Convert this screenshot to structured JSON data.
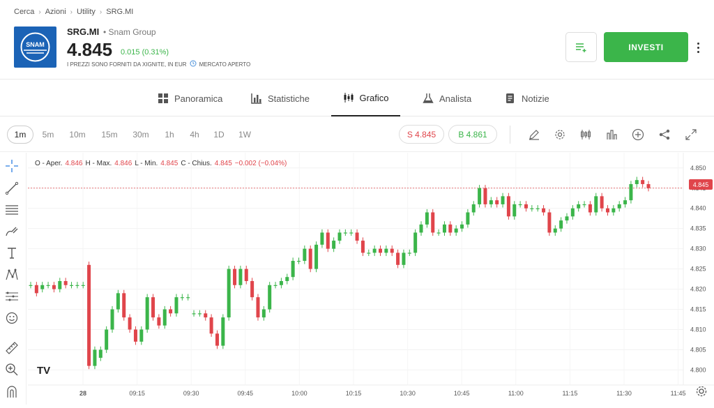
{
  "breadcrumb": [
    "Cerca",
    "Azioni",
    "Utility",
    "SRG.MI"
  ],
  "instrument": {
    "logo_text": "SNAM",
    "ticker": "SRG.MI",
    "company": "• Snam Group",
    "price": "4.845",
    "change": "0.015 (0.31%)",
    "disclaimer": "I PREZZI SONO FORNITI DA XIGNITE, IN EUR",
    "market_status": "MERCATO APERTO"
  },
  "actions": {
    "invest_label": "INVESTI"
  },
  "tabs": [
    {
      "label": "Panoramica",
      "icon": "grid-icon"
    },
    {
      "label": "Statistiche",
      "icon": "bar-chart-icon"
    },
    {
      "label": "Grafico",
      "icon": "candlestick-icon",
      "active": true
    },
    {
      "label": "Analista",
      "icon": "flask-icon"
    },
    {
      "label": "Notizie",
      "icon": "news-icon"
    }
  ],
  "intervals": [
    "1m",
    "5m",
    "10m",
    "15m",
    "30m",
    "1h",
    "4h",
    "1D",
    "1W"
  ],
  "active_interval": "1m",
  "trade": {
    "sell": "S 4.845",
    "buy": "B 4.861"
  },
  "ohlc": {
    "o_label": "O - Aper.",
    "o": "4.846",
    "h_label": "H - Max.",
    "h": "4.846",
    "l_label": "L - Min.",
    "l": "4.845",
    "c_label": "C - Chius.",
    "c": "4.845",
    "chg": "−0.002 (−0.04%)"
  },
  "colors": {
    "up": "#3bb54a",
    "down": "#e0454b",
    "accent": "#3bb54a"
  },
  "chart_data": {
    "type": "candlestick",
    "y_ticks": [
      "4.850",
      "4.845",
      "4.840",
      "4.835",
      "4.830",
      "4.825",
      "4.820",
      "4.815",
      "4.810",
      "4.805",
      "4.800"
    ],
    "x_ticks": [
      "28",
      "09:15",
      "09:30",
      "09:45",
      "10:00",
      "10:15",
      "10:30",
      "10:45",
      "11:00",
      "11:15",
      "11:30",
      "11:45"
    ],
    "ylim": [
      4.798,
      4.851
    ],
    "last_price_label": "4.845",
    "candles": [
      {
        "o": 4.821,
        "c": 4.821
      },
      {
        "o": 4.821,
        "c": 4.819
      },
      {
        "o": 4.82,
        "c": 4.821
      },
      {
        "o": 4.821,
        "c": 4.821
      },
      {
        "o": 4.821,
        "c": 4.82
      },
      {
        "o": 4.82,
        "c": 4.822
      },
      {
        "o": 4.822,
        "c": 4.821
      },
      {
        "o": 4.821,
        "c": 4.821
      },
      {
        "o": 4.821,
        "c": 4.821
      },
      {
        "o": 4.821,
        "c": 4.821
      },
      {
        "o": 4.826,
        "c": 4.801
      },
      {
        "o": 4.801,
        "c": 4.805
      },
      {
        "o": 4.803,
        "c": 4.805
      },
      {
        "o": 4.805,
        "c": 4.81
      },
      {
        "o": 4.81,
        "c": 4.815
      },
      {
        "o": 4.815,
        "c": 4.819
      },
      {
        "o": 4.819,
        "c": 4.813
      },
      {
        "o": 4.813,
        "c": 4.81
      },
      {
        "o": 4.81,
        "c": 4.807
      },
      {
        "o": 4.807,
        "c": 4.81
      },
      {
        "o": 4.81,
        "c": 4.818
      },
      {
        "o": 4.818,
        "c": 4.813
      },
      {
        "o": 4.813,
        "c": 4.811
      },
      {
        "o": 4.811,
        "c": 4.815
      },
      {
        "o": 4.815,
        "c": 4.814
      },
      {
        "o": 4.814,
        "c": 4.818
      },
      {
        "o": 4.818,
        "c": 4.818
      },
      {
        "o": 4.818,
        "c": 4.818
      },
      {
        "o": 4.814,
        "c": 4.814
      },
      {
        "o": 4.814,
        "c": 4.814
      },
      {
        "o": 4.814,
        "c": 4.813
      },
      {
        "o": 4.813,
        "c": 4.809
      },
      {
        "o": 4.809,
        "c": 4.806
      },
      {
        "o": 4.806,
        "c": 4.813
      },
      {
        "o": 4.813,
        "c": 4.825
      },
      {
        "o": 4.825,
        "c": 4.821
      },
      {
        "o": 4.821,
        "c": 4.825
      },
      {
        "o": 4.825,
        "c": 4.822
      },
      {
        "o": 4.822,
        "c": 4.818
      },
      {
        "o": 4.818,
        "c": 4.813
      },
      {
        "o": 4.813,
        "c": 4.815
      },
      {
        "o": 4.815,
        "c": 4.821
      },
      {
        "o": 4.821,
        "c": 4.821
      },
      {
        "o": 4.821,
        "c": 4.822
      },
      {
        "o": 4.822,
        "c": 4.823
      },
      {
        "o": 4.823,
        "c": 4.827
      },
      {
        "o": 4.827,
        "c": 4.827
      },
      {
        "o": 4.827,
        "c": 4.83
      },
      {
        "o": 4.83,
        "c": 4.825
      },
      {
        "o": 4.825,
        "c": 4.831
      },
      {
        "o": 4.831,
        "c": 4.834
      },
      {
        "o": 4.834,
        "c": 4.83
      },
      {
        "o": 4.83,
        "c": 4.832
      },
      {
        "o": 4.832,
        "c": 4.834
      },
      {
        "o": 4.834,
        "c": 4.834
      },
      {
        "o": 4.834,
        "c": 4.834
      },
      {
        "o": 4.834,
        "c": 4.832
      },
      {
        "o": 4.832,
        "c": 4.829
      },
      {
        "o": 4.829,
        "c": 4.829
      },
      {
        "o": 4.829,
        "c": 4.83
      },
      {
        "o": 4.83,
        "c": 4.829
      },
      {
        "o": 4.829,
        "c": 4.83
      },
      {
        "o": 4.83,
        "c": 4.829
      },
      {
        "o": 4.829,
        "c": 4.826
      },
      {
        "o": 4.826,
        "c": 4.829
      },
      {
        "o": 4.829,
        "c": 4.829
      },
      {
        "o": 4.829,
        "c": 4.834
      },
      {
        "o": 4.834,
        "c": 4.836
      },
      {
        "o": 4.836,
        "c": 4.839
      },
      {
        "o": 4.839,
        "c": 4.834
      },
      {
        "o": 4.834,
        "c": 4.834
      },
      {
        "o": 4.834,
        "c": 4.836
      },
      {
        "o": 4.836,
        "c": 4.834
      },
      {
        "o": 4.834,
        "c": 4.835
      },
      {
        "o": 4.835,
        "c": 4.836
      },
      {
        "o": 4.836,
        "c": 4.839
      },
      {
        "o": 4.839,
        "c": 4.841
      },
      {
        "o": 4.841,
        "c": 4.845
      },
      {
        "o": 4.845,
        "c": 4.841
      },
      {
        "o": 4.841,
        "c": 4.842
      },
      {
        "o": 4.842,
        "c": 4.841
      },
      {
        "o": 4.841,
        "c": 4.843
      },
      {
        "o": 4.843,
        "c": 4.838
      },
      {
        "o": 4.838,
        "c": 4.841
      },
      {
        "o": 4.841,
        "c": 4.841
      },
      {
        "o": 4.841,
        "c": 4.84
      },
      {
        "o": 4.84,
        "c": 4.84
      },
      {
        "o": 4.84,
        "c": 4.84
      },
      {
        "o": 4.84,
        "c": 4.839
      },
      {
        "o": 4.839,
        "c": 4.834
      },
      {
        "o": 4.834,
        "c": 4.835
      },
      {
        "o": 4.835,
        "c": 4.837
      },
      {
        "o": 4.837,
        "c": 4.838
      },
      {
        "o": 4.838,
        "c": 4.84
      },
      {
        "o": 4.84,
        "c": 4.841
      },
      {
        "o": 4.841,
        "c": 4.841
      },
      {
        "o": 4.841,
        "c": 4.839
      },
      {
        "o": 4.839,
        "c": 4.843
      },
      {
        "o": 4.843,
        "c": 4.84
      },
      {
        "o": 4.84,
        "c": 4.839
      },
      {
        "o": 4.839,
        "c": 4.84
      },
      {
        "o": 4.84,
        "c": 4.841
      },
      {
        "o": 4.841,
        "c": 4.842
      },
      {
        "o": 4.842,
        "c": 4.846
      },
      {
        "o": 4.846,
        "c": 4.847
      },
      {
        "o": 4.847,
        "c": 4.846
      },
      {
        "o": 4.846,
        "c": 4.845
      }
    ]
  }
}
